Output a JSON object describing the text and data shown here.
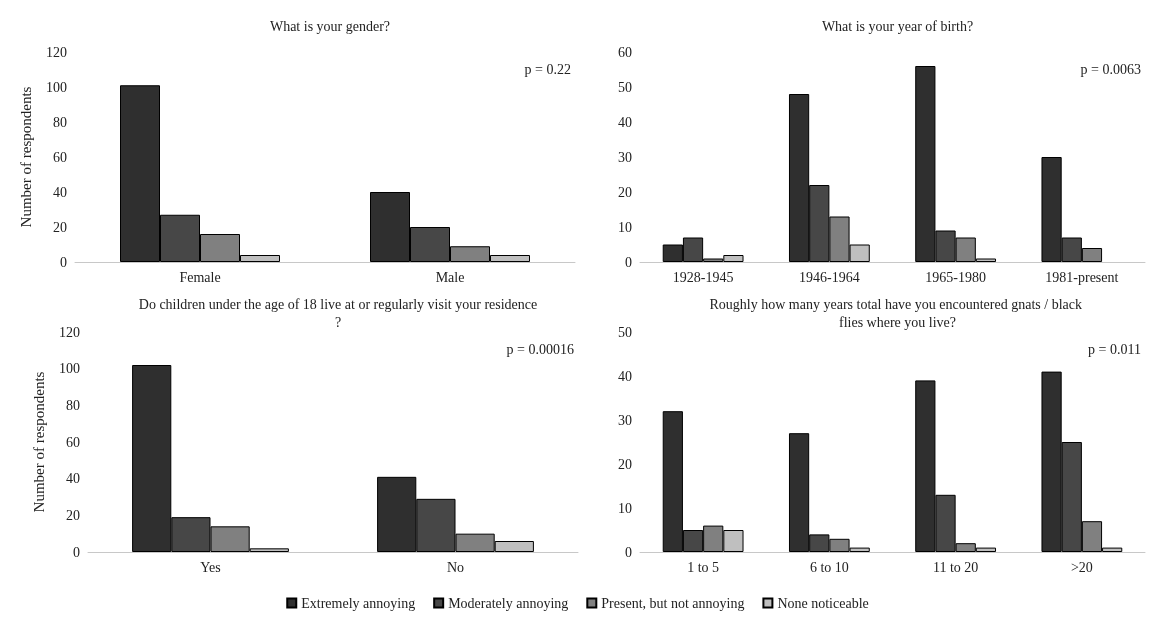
{
  "chart_data": [
    {
      "type": "bar",
      "title": "What is your gender?",
      "ylabel": "Number of respondents",
      "categories": [
        "Female",
        "Male"
      ],
      "ylim": [
        0,
        120
      ],
      "yticks": [
        0,
        20,
        40,
        60,
        80,
        100,
        120
      ],
      "annotations": [
        "p = 0.22"
      ],
      "legend": "bottom",
      "series": [
        {
          "name": "Extremely annoying",
          "color": "#2f2f2f",
          "values": [
            101,
            40
          ]
        },
        {
          "name": "Moderately annoying",
          "color": "#474747",
          "values": [
            27,
            20
          ]
        },
        {
          "name": "Present, but not annoying",
          "color": "#808080",
          "values": [
            16,
            9
          ]
        },
        {
          "name": "None noticeable",
          "color": "#bfbfbf",
          "values": [
            4,
            4
          ]
        }
      ]
    },
    {
      "type": "bar",
      "title": "What is your year of birth?",
      "categories": [
        "1928-1945",
        "1946-1964",
        "1965-1980",
        "1981-present"
      ],
      "ylim": [
        0,
        60
      ],
      "yticks": [
        0,
        10,
        20,
        30,
        40,
        50,
        60
      ],
      "annotations": [
        "p = 0.0063"
      ],
      "legend": "bottom",
      "series": [
        {
          "name": "Extremely annoying",
          "color": "#2f2f2f",
          "values": [
            5,
            48,
            56,
            30
          ]
        },
        {
          "name": "Moderately annoying",
          "color": "#474747",
          "values": [
            7,
            22,
            9,
            7
          ]
        },
        {
          "name": "Present, but not annoying",
          "color": "#808080",
          "values": [
            1,
            13,
            7,
            4
          ]
        },
        {
          "name": "None noticeable",
          "color": "#bfbfbf",
          "values": [
            2,
            5,
            1,
            null
          ]
        }
      ]
    },
    {
      "type": "bar",
      "title": "Do children under the age of 18 live at or regularly visit your residence?",
      "ylabel": "Number of respondents",
      "categories": [
        "Yes",
        "No"
      ],
      "ylim": [
        0,
        120
      ],
      "yticks": [
        0,
        20,
        40,
        60,
        80,
        100,
        120
      ],
      "annotations": [
        "p = 0.00016"
      ],
      "legend": "bottom",
      "series": [
        {
          "name": "Extremely annoying",
          "color": "#2f2f2f",
          "values": [
            102,
            41
          ]
        },
        {
          "name": "Moderately annoying",
          "color": "#474747",
          "values": [
            19,
            29
          ]
        },
        {
          "name": "Present, but not annoying",
          "color": "#808080",
          "values": [
            14,
            10
          ]
        },
        {
          "name": "None noticeable",
          "color": "#bfbfbf",
          "values": [
            2,
            6
          ]
        }
      ]
    },
    {
      "type": "bar",
      "title": "Roughly how many years total have you encountered gnats / black flies where you live?",
      "categories": [
        "1 to 5",
        "6 to 10",
        "11 to 20",
        ">20"
      ],
      "ylim": [
        0,
        50
      ],
      "yticks": [
        0,
        10,
        20,
        30,
        40,
        50
      ],
      "annotations": [
        "p = 0.011"
      ],
      "legend": "bottom",
      "series": [
        {
          "name": "Extremely annoying",
          "color": "#2f2f2f",
          "values": [
            32,
            27,
            39,
            41
          ]
        },
        {
          "name": "Moderately annoying",
          "color": "#474747",
          "values": [
            5,
            4,
            13,
            25
          ]
        },
        {
          "name": "Present, but not annoying",
          "color": "#808080",
          "values": [
            6,
            3,
            2,
            7
          ]
        },
        {
          "name": "None noticeable",
          "color": "#bfbfbf",
          "values": [
            5,
            1,
            1,
            1
          ]
        }
      ]
    }
  ]
}
